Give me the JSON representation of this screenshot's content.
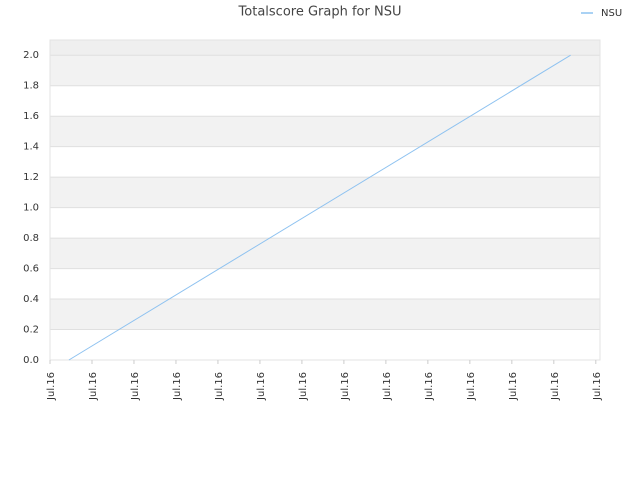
{
  "chart_data": {
    "type": "line",
    "title": "Totalscore Graph for NSU",
    "x": [
      0.45,
      12.4
    ],
    "series": [
      {
        "name": "NSU",
        "color": "#8ec2f0",
        "values": [
          0,
          2
        ]
      }
    ],
    "xlim": [
      0,
      13.1
    ],
    "xticks": [
      {
        "value": 0,
        "label": "Jul.16"
      },
      {
        "value": 1,
        "label": "Jul.16"
      },
      {
        "value": 2,
        "label": "Jul.16"
      },
      {
        "value": 3,
        "label": "Jul.16"
      },
      {
        "value": 4,
        "label": "Jul.16"
      },
      {
        "value": 5,
        "label": "Jul.16"
      },
      {
        "value": 6,
        "label": "Jul.16"
      },
      {
        "value": 7,
        "label": "Jul.16"
      },
      {
        "value": 8,
        "label": "Jul.16"
      },
      {
        "value": 9,
        "label": "Jul.16"
      },
      {
        "value": 10,
        "label": "Jul.16"
      },
      {
        "value": 11,
        "label": "Jul.16"
      },
      {
        "value": 12,
        "label": "Jul.16"
      },
      {
        "value": 13,
        "label": "Jul.16"
      }
    ],
    "ylim": [
      0,
      2.1
    ],
    "yticks": [
      {
        "value": 0,
        "label": "0.0"
      },
      {
        "value": 0.2,
        "label": "0.2"
      },
      {
        "value": 0.4,
        "label": "0.4"
      },
      {
        "value": 0.6,
        "label": "0.6"
      },
      {
        "value": 0.8,
        "label": "0.8"
      },
      {
        "value": 1,
        "label": "1.0"
      },
      {
        "value": 1.2,
        "label": "1.2"
      },
      {
        "value": 1.4,
        "label": "1.4"
      },
      {
        "value": 1.6,
        "label": "1.6"
      },
      {
        "value": 1.8,
        "label": "1.8"
      },
      {
        "value": 2,
        "label": "2.0"
      }
    ],
    "grid": true,
    "legend": "top-right"
  }
}
